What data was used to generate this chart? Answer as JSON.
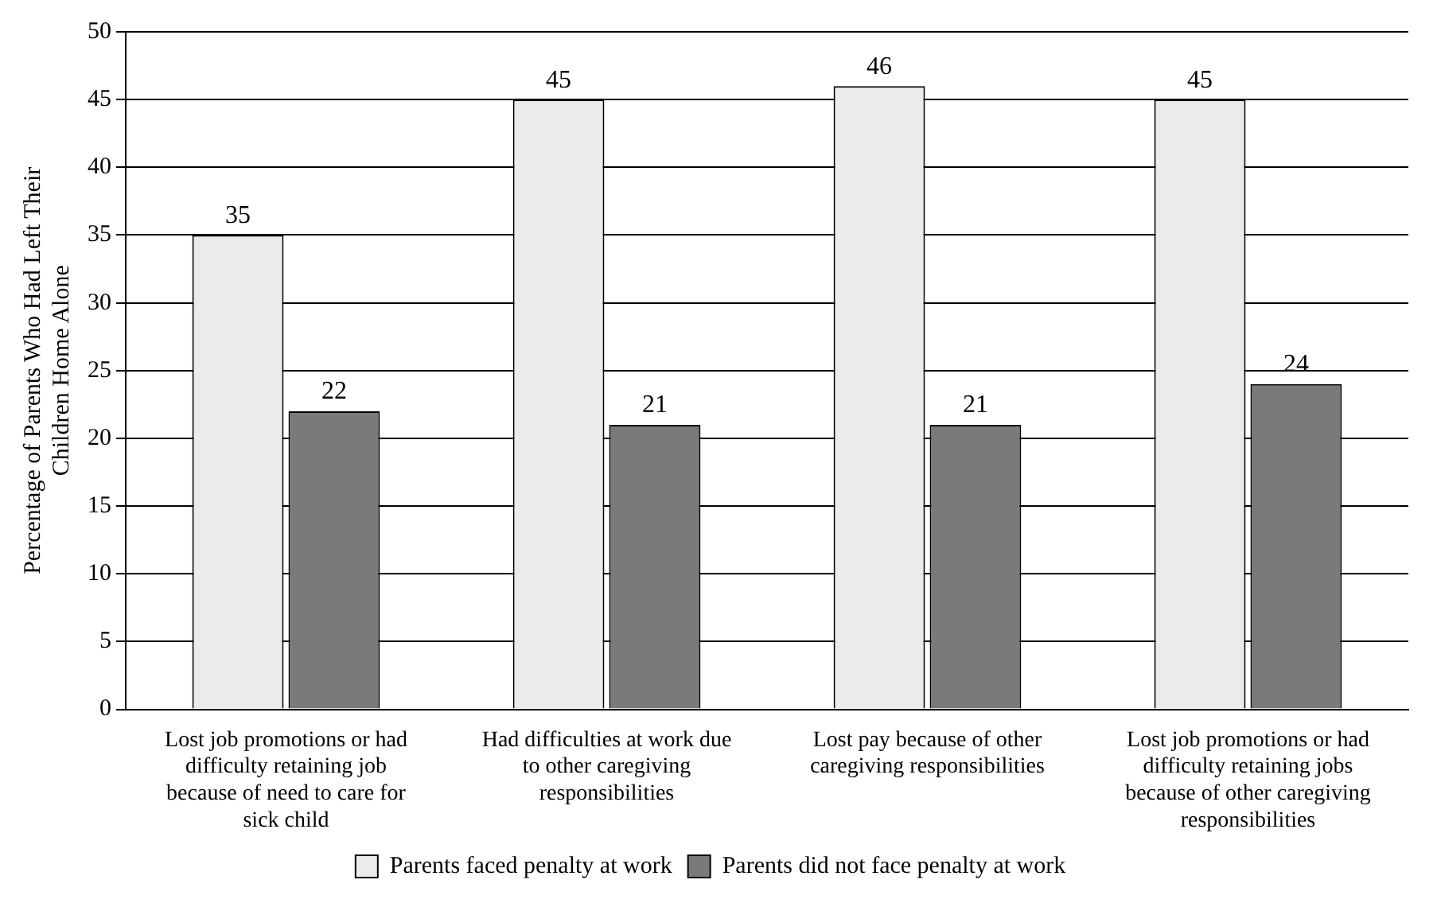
{
  "chart_data": {
    "type": "bar",
    "ylabel": "Percentage of Parents Who Had Left Their Children Home Alone",
    "categories": [
      "Lost job promotions or had difficulty retaining job because of need to care for sick child",
      "Had difficulties at work due to other caregiving responsibilities",
      "Lost pay because of other caregiving responsibilities",
      "Lost job promotions or had difficulty retaining jobs because of other caregiving responsibilities"
    ],
    "series": [
      {
        "name": "Parents faced penalty at work",
        "color": "#ebebeb",
        "values": [
          35,
          45,
          46,
          45
        ]
      },
      {
        "name": "Parents did not face penalty at work",
        "color": "#7a7a7a",
        "values": [
          22,
          21,
          21,
          24
        ]
      }
    ],
    "ylim": [
      0,
      50
    ],
    "yticks": [
      0,
      5,
      10,
      15,
      20,
      25,
      30,
      35,
      40,
      45,
      50
    ],
    "grid": "y",
    "legend": "bottom",
    "data_labels": true
  }
}
